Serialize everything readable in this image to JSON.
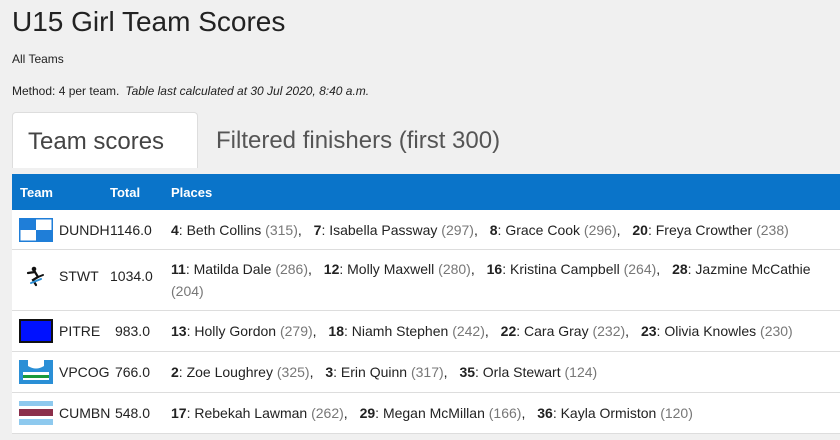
{
  "header": {
    "title": "U15 Girl Team Scores",
    "subtitle": "All Teams",
    "method": "Method: 4 per team.",
    "calculated": "Table last calculated at 30 Jul 2020, 8:40 a.m."
  },
  "tabs": [
    {
      "label": "Team scores",
      "active": true
    },
    {
      "label": "Filtered finishers (first 300)",
      "active": false
    }
  ],
  "table": {
    "columns": {
      "team": "Team",
      "total": "Total",
      "places": "Places"
    },
    "rows": [
      {
        "team": "DUNDH",
        "total": "1146.0",
        "logo": "dundh-team-logo",
        "places": [
          {
            "pos": "4",
            "name": "Beth Collins",
            "pts": "(315)"
          },
          {
            "pos": "7",
            "name": "Isabella Passway",
            "pts": "(297)"
          },
          {
            "pos": "8",
            "name": "Grace Cook",
            "pts": "(296)"
          },
          {
            "pos": "20",
            "name": "Freya Crowther",
            "pts": "(238)"
          }
        ]
      },
      {
        "team": "STWT",
        "total": "1034.0",
        "logo": "stwt-team-logo",
        "places": [
          {
            "pos": "11",
            "name": "Matilda Dale",
            "pts": "(286)"
          },
          {
            "pos": "12",
            "name": "Molly Maxwell",
            "pts": "(280)"
          },
          {
            "pos": "16",
            "name": "Kristina Campbell",
            "pts": "(264)"
          },
          {
            "pos": "28",
            "name": "Jazmine McCathie",
            "pts": "(204)"
          }
        ]
      },
      {
        "team": "PITRE",
        "total": "983.0",
        "logo": "pitre-team-logo",
        "places": [
          {
            "pos": "13",
            "name": "Holly Gordon",
            "pts": "(279)"
          },
          {
            "pos": "18",
            "name": "Niamh Stephen",
            "pts": "(242)"
          },
          {
            "pos": "22",
            "name": "Cara Gray",
            "pts": "(232)"
          },
          {
            "pos": "23",
            "name": "Olivia Knowles",
            "pts": "(230)"
          }
        ]
      },
      {
        "team": "VPCOG",
        "total": "766.0",
        "logo": "vpcog-team-logo",
        "places": [
          {
            "pos": "2",
            "name": "Zoe Loughrey",
            "pts": "(325)"
          },
          {
            "pos": "3",
            "name": "Erin Quinn",
            "pts": "(317)"
          },
          {
            "pos": "35",
            "name": "Orla Stewart",
            "pts": "(124)"
          }
        ]
      },
      {
        "team": "CUMBN",
        "total": "548.0",
        "logo": "cumbn-team-logo",
        "places": [
          {
            "pos": "17",
            "name": "Rebekah Lawman",
            "pts": "(262)"
          },
          {
            "pos": "29",
            "name": "Megan McMillan",
            "pts": "(166)"
          },
          {
            "pos": "36",
            "name": "Kayla Ormiston",
            "pts": "(120)"
          }
        ]
      }
    ]
  },
  "colors": {
    "header_blue": "#0a74c9",
    "points_grey": "#777777"
  }
}
